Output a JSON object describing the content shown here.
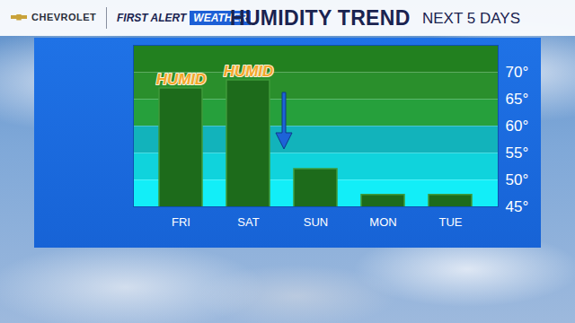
{
  "chart_data": {
    "type": "bar",
    "sponsor": "CHEVROLET",
    "brand": "FIRST ALERT",
    "brand_tag": "WEATHER",
    "title": "HUMIDITY TREND",
    "subtitle": "NEXT 5 DAYS",
    "categories": [
      "FRI",
      "SAT",
      "SUN",
      "MON",
      "TUE"
    ],
    "values": [
      67,
      68.5,
      52,
      47.2,
      47.2
    ],
    "color": "#1d6b1b",
    "ylim": [
      45,
      75
    ],
    "yticks": [
      {
        "value": 45,
        "label": "45°"
      },
      {
        "value": 50,
        "label": "50°"
      },
      {
        "value": 55,
        "label": "55°"
      },
      {
        "value": 60,
        "label": "60°"
      },
      {
        "value": 65,
        "label": "65°"
      },
      {
        "value": 70,
        "label": "70°"
      }
    ],
    "annotations": [
      {
        "text": "HUMID",
        "x": "FRI"
      },
      {
        "text": "HUMID",
        "x": "SAT"
      }
    ]
  }
}
